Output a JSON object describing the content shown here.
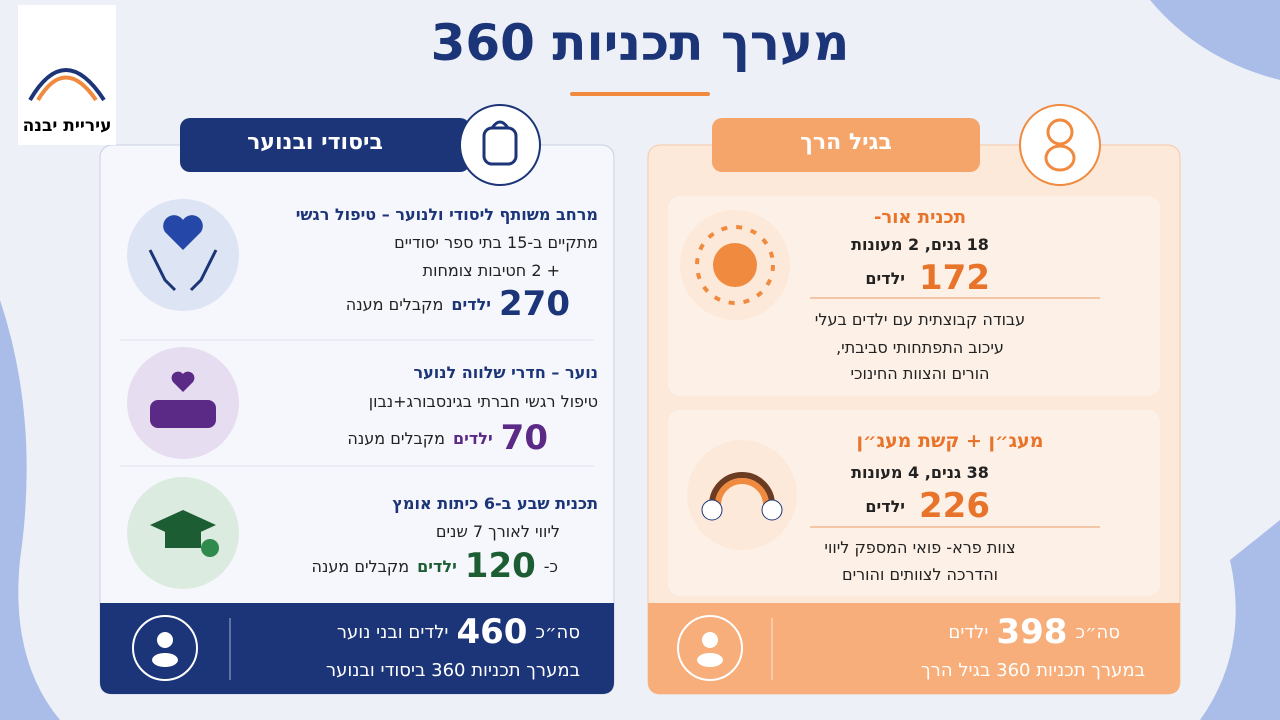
{
  "header": {
    "title": "מערך תכניות 360",
    "logo_text": "עיריית יבנה"
  },
  "primary_youth": {
    "heading": "ביסודי ובנוער",
    "items": [
      {
        "title": "מרחב משותף ליסודי ולנוער – טיפול רגשי",
        "lines": [
          "מתקיים ב-15 בתי ספר יסודיים",
          "+ 2 חטיבות צומחות"
        ],
        "number": 270,
        "unit": "ילדים",
        "suffix": "מקבלים מענה"
      },
      {
        "title": "נוער – חדרי שלווה לנוער",
        "lines": [
          "טיפול רגשי חברתי בגינסבורג+נבון"
        ],
        "number": 70,
        "unit": "ילדים",
        "suffix": "מקבלים מענה"
      },
      {
        "title": "תכנית שבע ב-6 כיתות אומץ",
        "lines": [
          "ליווי לאורך 7 שנים"
        ],
        "prefix": "כ-",
        "number": 120,
        "unit": "ילדים",
        "suffix": "מקבלים מענה"
      }
    ],
    "total": {
      "prefix": "סה״כ",
      "number": 460,
      "unit": "ילדים ובני נוער",
      "line2": "במערך תכניות 360 ביסודי ובנוער"
    }
  },
  "early_childhood": {
    "heading": "בגיל הרך",
    "items": [
      {
        "title": "תכנית אור-",
        "subtitle": "18 גנים, 2 מעונות",
        "number": 172,
        "unit": "ילדים",
        "lines": [
          "עבודה קבוצתית עם ילדים בעלי",
          "עיכוב התפתחותי סביבתי,",
          "הורים והצוות החינוכי"
        ]
      },
      {
        "title": "מעג״ן + קשת מעג״ן",
        "subtitle": "38 גנים, 4 מעונות",
        "number": 226,
        "unit": "ילדים",
        "lines": [
          "צוות פרא- פואי המספק ליווי",
          "והדרכה לצוותים והורים"
        ]
      }
    ],
    "total": {
      "prefix": "סה״כ",
      "number": 398,
      "unit": "ילדים",
      "line2": "במערך תכניות 360 בגיל הרך"
    }
  }
}
